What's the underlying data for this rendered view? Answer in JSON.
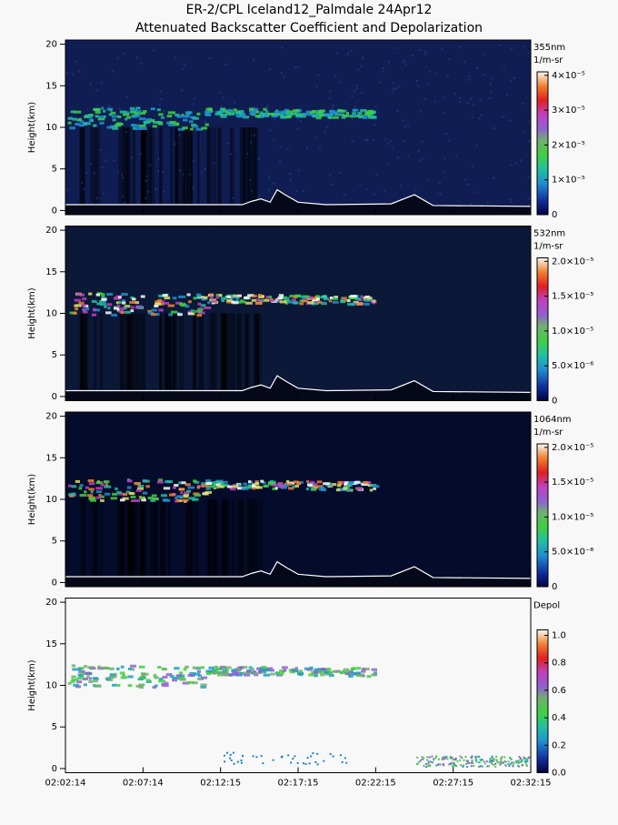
{
  "title": "ER-2/CPL Iceland12_Palmdale 24Apr12",
  "subtitle": "Attenuated Backscatter Coefficient and Depolarization",
  "xticks": [
    "02:02:14",
    "02:07:14",
    "02:12:15",
    "02:17:15",
    "02:22:15",
    "02:27:15",
    "02:32:15"
  ],
  "chart_data": [
    {
      "type": "heatmap",
      "ylabel": "Height(km)",
      "ylim": [
        -0.5,
        20.5
      ],
      "yticks": [
        0,
        5,
        10,
        15,
        20
      ],
      "colorbar_title": "355nm",
      "colorbar_unit": "1/m-sr",
      "clim": [
        0,
        4.1e-05
      ],
      "cticks": [
        0,
        {
          "value": 1e-05,
          "label": "1×10⁻⁵"
        },
        {
          "value": 2e-05,
          "label": "2×10⁻⁵"
        },
        {
          "value": 3e-05,
          "label": "3×10⁻⁵"
        },
        {
          "value": 4e-05,
          "label": "4×10⁻⁵"
        }
      ]
    },
    {
      "type": "heatmap",
      "ylabel": "Height(km)",
      "ylim": [
        -0.5,
        20.5
      ],
      "yticks": [
        0,
        5,
        10,
        15,
        20
      ],
      "colorbar_title": "532nm",
      "colorbar_unit": "1/m-sr",
      "clim": [
        0,
        2.05e-05
      ],
      "cticks": [
        0,
        {
          "value": 5e-06,
          "label": "5.0×10⁻⁶"
        },
        {
          "value": 1e-05,
          "label": "1.0×10⁻⁵"
        },
        {
          "value": 1.5e-05,
          "label": "1.5×10⁻⁵"
        },
        {
          "value": 2e-05,
          "label": "2.0×10⁻⁵"
        }
      ]
    },
    {
      "type": "heatmap",
      "ylabel": "Height(km)",
      "ylim": [
        -0.5,
        20.5
      ],
      "yticks": [
        0,
        5,
        10,
        15,
        20
      ],
      "colorbar_title": "1064nm",
      "colorbar_unit": "1/m-sr",
      "clim": [
        0,
        2.05e-05
      ],
      "cticks": [
        0,
        {
          "value": 5e-06,
          "label": "5.0×10⁻⁶"
        },
        {
          "value": 1e-05,
          "label": "1.0×10⁻⁵"
        },
        {
          "value": 1.5e-05,
          "label": "1.5×10⁻⁵"
        },
        {
          "value": 2e-05,
          "label": "2.0×10⁻⁵"
        }
      ]
    },
    {
      "type": "heatmap",
      "ylabel": "Height(km)",
      "ylim": [
        -0.5,
        20.5
      ],
      "yticks": [
        0,
        5,
        10,
        15,
        20
      ],
      "colorbar_title": "Depol",
      "clim": [
        0,
        1.04
      ],
      "cticks": [
        {
          "value": 0,
          "label": "0.0"
        },
        0.2,
        0.4,
        0.6,
        0.8,
        {
          "value": 1,
          "label": "1.0"
        }
      ]
    }
  ]
}
